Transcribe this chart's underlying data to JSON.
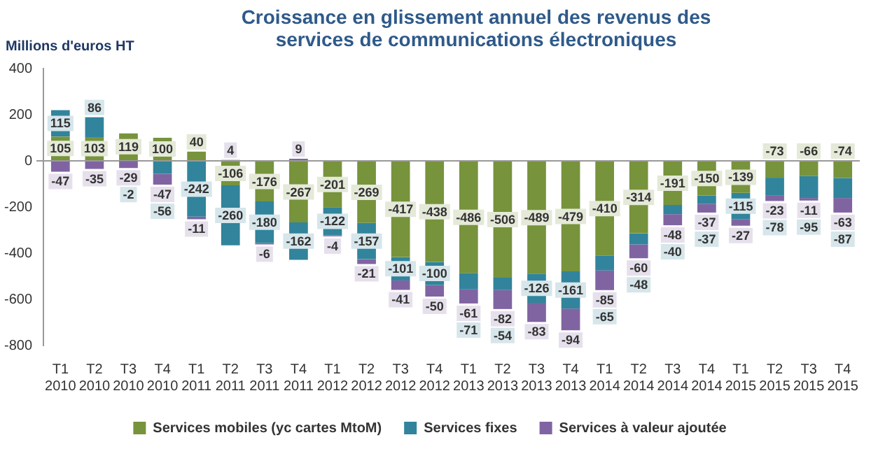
{
  "chart_data": {
    "type": "bar",
    "stacked": true,
    "title": "Croissance en glissement annuel des revenus des services de communications électroniques",
    "ylabel": "Millions d'euros HT",
    "categories": [
      "T1 2010",
      "T2 2010",
      "T3 2010",
      "T4 2010",
      "T1 2011",
      "T2 2011",
      "T3 2011",
      "T4 2011",
      "T1 2012",
      "T2 2012",
      "T3 2012",
      "T4 2012",
      "T1 2013",
      "T2 2013",
      "T3 2013",
      "T4 2013",
      "T1 2014",
      "T2 2014",
      "T3 2014",
      "T4 2014",
      "T1 2015",
      "T2 2015",
      "T3 2015",
      "T4 2015"
    ],
    "series": [
      {
        "name": "Services mobiles (yc cartes MtoM)",
        "color": "#77933c",
        "values": [
          105,
          103,
          119,
          100,
          40,
          -106,
          -176,
          -267,
          -201,
          -269,
          -417,
          -438,
          -486,
          -506,
          -489,
          -479,
          -410,
          -314,
          -191,
          -150,
          -139,
          -73,
          -66,
          -74
        ]
      },
      {
        "name": "Services fixes",
        "color": "#31849b",
        "values": [
          115,
          86,
          -2,
          -56,
          -242,
          -260,
          -180,
          -162,
          -122,
          -157,
          -101,
          -100,
          -71,
          -54,
          -126,
          -161,
          -65,
          -48,
          -40,
          -37,
          -115,
          -78,
          -95,
          -87
        ]
      },
      {
        "name": "Services à valeur ajoutée",
        "color": "#8064a2",
        "values": [
          -47,
          -35,
          -29,
          -47,
          -11,
          4,
          -6,
          9,
          -4,
          -21,
          -41,
          -50,
          -61,
          -82,
          -83,
          -94,
          -85,
          -60,
          -48,
          -37,
          -27,
          -23,
          -11,
          -63
        ]
      }
    ],
    "ylim": [
      -800,
      400
    ],
    "yticks": [
      -800,
      -600,
      -400,
      -200,
      0,
      200,
      400
    ],
    "legend": "bottom",
    "data_labels": true
  }
}
